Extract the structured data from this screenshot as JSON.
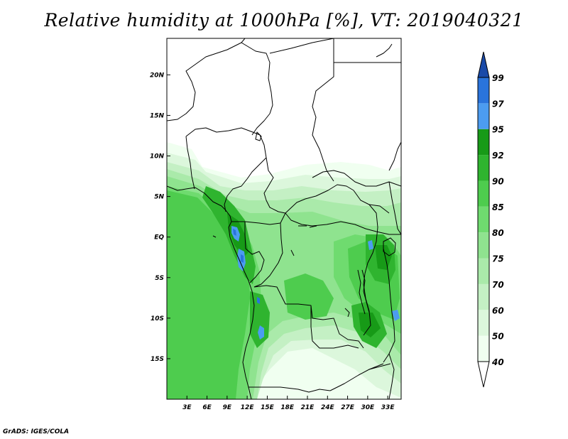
{
  "title": "Relative humidity at 1000hPa [%], VT: 2019040321",
  "credit": "GrADS: IGES/COLA",
  "map": {
    "lon_range": [
      0,
      35
    ],
    "lat_range": [
      -20,
      24.5
    ],
    "lat_ticks": [
      {
        "lat": 20,
        "label": "20N"
      },
      {
        "lat": 15,
        "label": "15N"
      },
      {
        "lat": 10,
        "label": "10N"
      },
      {
        "lat": 5,
        "label": "5N"
      },
      {
        "lat": 0,
        "label": "EQ"
      },
      {
        "lat": -5,
        "label": "5S"
      },
      {
        "lat": -10,
        "label": "10S"
      },
      {
        "lat": -15,
        "label": "15S"
      }
    ],
    "lon_ticks": [
      {
        "lon": 3,
        "label": "3E"
      },
      {
        "lon": 6,
        "label": "6E"
      },
      {
        "lon": 9,
        "label": "9E"
      },
      {
        "lon": 12,
        "label": "12E"
      },
      {
        "lon": 15,
        "label": "15E"
      },
      {
        "lon": 18,
        "label": "18E"
      },
      {
        "lon": 21,
        "label": "21E"
      },
      {
        "lon": 24,
        "label": "24E"
      },
      {
        "lon": 27,
        "label": "27E"
      },
      {
        "lon": 30,
        "label": "30E"
      },
      {
        "lon": 33,
        "label": "33E"
      }
    ]
  },
  "colorbar": {
    "levels": [
      {
        "label": "40",
        "color": "#f0fff0"
      },
      {
        "label": "50",
        "color": "#dcf7dc"
      },
      {
        "label": "60",
        "color": "#c4f0c4"
      },
      {
        "label": "70",
        "color": "#aaeaaa"
      },
      {
        "label": "75",
        "color": "#8fe38f"
      },
      {
        "label": "80",
        "color": "#6fdb6f"
      },
      {
        "label": "85",
        "color": "#4ecc4e"
      },
      {
        "label": "90",
        "color": "#2fb42f"
      },
      {
        "label": "92",
        "color": "#179a17"
      },
      {
        "label": "95",
        "color": "#4c9cf0"
      },
      {
        "label": "97",
        "color": "#2a74dc"
      },
      {
        "label": "99",
        "color": "#1f56b8"
      }
    ],
    "below_color": "#ffffff",
    "above_color": "#1a4aa8"
  }
}
